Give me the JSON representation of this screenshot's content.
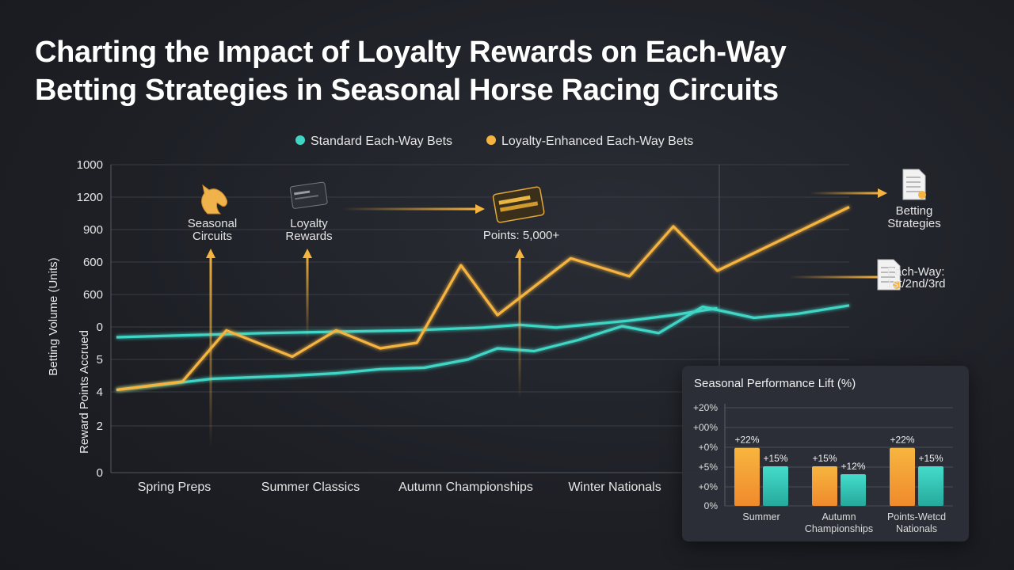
{
  "title_lines": [
    "Charting the Impact of Loyalty Rewards on Each-Way",
    "Betting Strategies in Seasonal Horse Racing Circuits"
  ],
  "colors": {
    "standard": "#3fd6c6",
    "loyalty": "#f5b33f",
    "grid": "#3a3d45",
    "text": "#e6e6e6"
  },
  "chart_data": [
    {
      "type": "line",
      "legend": [
        "Standard Each-Way Bets",
        "Loyalty-Enhanced Each-Way Bets"
      ],
      "legend_position": "top",
      "y_left_labels": [
        "1000",
        "1200",
        "900",
        "600",
        "600",
        "0",
        "5",
        "4",
        "2",
        "0"
      ],
      "ylabel_outer": "Betting Volume (Units)",
      "ylabel_inner": "Reward Points Accrued",
      "categories": [
        "Spring Preps",
        "Summer Classics",
        "Autumn Championships",
        "Winter Nationals"
      ],
      "grid": true,
      "series": [
        {
          "name": "Standard Each-Way Bets",
          "color_key": "standard",
          "x": [
            0,
            0.05,
            0.13,
            0.23,
            0.3,
            0.36,
            0.42,
            0.48,
            0.52,
            0.57,
            0.63,
            0.69,
            0.74,
            0.8,
            0.87,
            0.93,
            1.0
          ],
          "values": [
            2.6,
            2.9,
            3.4,
            3.6,
            3.8,
            4.1,
            4.2,
            4.8,
            5.6,
            5.4,
            6.2,
            7.2,
            6.7,
            8.6,
            7.8,
            8.1,
            8.7
          ]
        },
        {
          "name": "Standard Each-Way Bets (upper trend)",
          "color_key": "standard",
          "x": [
            0,
            0.2,
            0.4,
            0.5,
            0.55,
            0.6,
            0.7,
            0.76,
            0.82
          ],
          "values": [
            6.4,
            6.7,
            6.9,
            7.1,
            7.3,
            7.1,
            7.6,
            8.0,
            8.5
          ]
        },
        {
          "name": "Loyalty-Enhanced Each-Way Bets",
          "color_key": "loyalty",
          "x": [
            0,
            0.09,
            0.15,
            0.24,
            0.3,
            0.36,
            0.41,
            0.47,
            0.52,
            0.62,
            0.7,
            0.76,
            0.82,
            1.0
          ],
          "values": [
            2.6,
            3.2,
            6.9,
            5.0,
            6.9,
            5.6,
            6.0,
            11.6,
            8.0,
            12.1,
            10.8,
            14.4,
            11.2,
            15.8
          ]
        }
      ],
      "annotations": [
        {
          "icon": "horse-head-icon",
          "lines": [
            "Seasonal",
            "Circuits"
          ]
        },
        {
          "icon": "loyalty-card-icon",
          "lines": [
            "Loyalty",
            "Rewards"
          ]
        },
        {
          "icon": "gold-card-icon",
          "lines": [
            "Points: 5,000+"
          ]
        },
        {
          "icon": "document-icon",
          "lines": [
            "Betting",
            "Strategies"
          ]
        },
        {
          "icon": "document-icon",
          "lines": [
            "Each-Way:",
            "1st/2nd/3rd"
          ]
        }
      ]
    },
    {
      "type": "bar",
      "title": "Seasonal Performance Lift (%)",
      "y_labels": [
        "+20%",
        "+00%",
        "+0%",
        "+5%",
        "+0%",
        "0%"
      ],
      "categories": [
        "Summer",
        "Autumn\nChampionships",
        "Points-Wetcd\nNationals"
      ],
      "series": [
        {
          "name": "Loyalty-Enhanced",
          "color_key": "loyalty",
          "values": [
            22,
            15,
            22
          ],
          "labels": [
            "+22%",
            "+15%",
            "+22%"
          ]
        },
        {
          "name": "Standard",
          "color_key": "standard",
          "values": [
            15,
            12,
            15
          ],
          "labels": [
            "+15%",
            "+12%",
            "+15%"
          ]
        }
      ]
    }
  ]
}
